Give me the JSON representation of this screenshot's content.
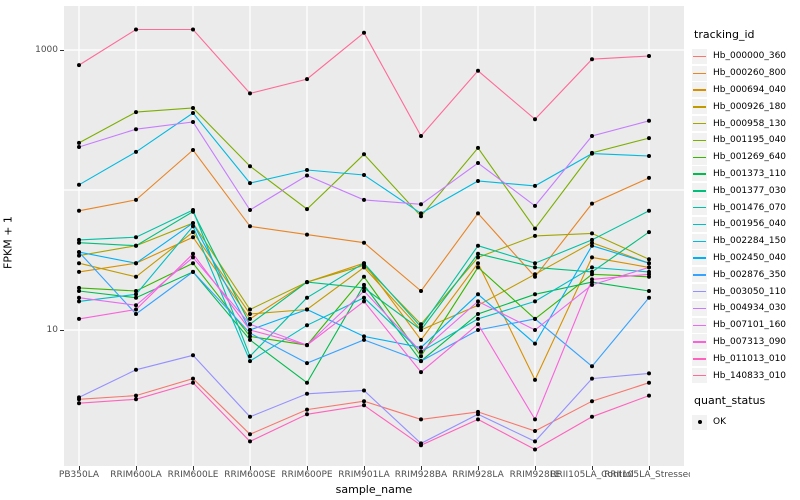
{
  "figure": {
    "background": "#FFFFFF",
    "panel_background": "#EBEBEB",
    "gridline_color": "#FFFFFF",
    "point_color": "#000000",
    "tick_label_color": "#4D4D4D"
  },
  "chart_data": {
    "type": "line",
    "title": "",
    "xlabel": "sample_name",
    "ylabel": "FPKM + 1",
    "yscale": "log10",
    "ylim": [
      1,
      2000
    ],
    "grid": "on",
    "legend_position": "right",
    "yticks": [
      {
        "value": 1000,
        "label": "1000"
      },
      {
        "value": 10,
        "label": "10"
      }
    ],
    "gridlines_y": [
      10,
      100,
      1000
    ],
    "categories": [
      "PB350LA",
      "RRIM600LA",
      "RRIM600LE",
      "RRIM600SE",
      "RRIM600PE",
      "RRIM901LA",
      "RRIM928BA",
      "RRIM928LA",
      "RRIM928LE",
      "RRII105LA_Control",
      "RRII105LA_Stressed"
    ],
    "series": [
      {
        "name": "Hb_000000_360",
        "color": "#F8766D",
        "values": [
          3.2,
          3.4,
          4.5,
          1.8,
          2.7,
          3.1,
          2.3,
          2.6,
          1.9,
          3.1,
          4.2
        ]
      },
      {
        "name": "Hb_000260_800",
        "color": "#E88526",
        "values": [
          71,
          85,
          193,
          55,
          48,
          42,
          19,
          68,
          24,
          80,
          122
        ]
      },
      {
        "name": "Hb_000694_040",
        "color": "#D89000",
        "values": [
          26,
          30,
          46,
          12,
          22,
          30,
          8.5,
          30,
          4.4,
          33,
          28
        ]
      },
      {
        "name": "Hb_000926_180",
        "color": "#C09B00",
        "values": [
          30,
          24,
          50,
          13,
          14,
          28,
          10,
          15,
          25,
          42,
          30
        ]
      },
      {
        "name": "Hb_000958_130",
        "color": "#A3A500",
        "values": [
          34,
          40,
          58,
          14,
          22,
          29,
          11,
          33,
          47,
          49,
          32
        ]
      },
      {
        "name": "Hb_001195_040",
        "color": "#7CAE00",
        "values": [
          217,
          360,
          385,
          148,
          73,
          180,
          65,
          200,
          53,
          184,
          235
        ]
      },
      {
        "name": "Hb_001269_640",
        "color": "#39B600",
        "values": [
          20,
          19,
          30,
          9,
          7.8,
          24,
          6.5,
          28,
          12,
          25,
          24
        ]
      },
      {
        "name": "Hb_001373_110",
        "color": "#00BB4E",
        "values": [
          19,
          17,
          26,
          8.5,
          4.2,
          21,
          6,
          13,
          18,
          22,
          19
        ]
      },
      {
        "name": "Hb_001377_030",
        "color": "#00BF7D",
        "values": [
          42,
          40,
          70,
          11,
          22,
          20,
          10,
          35,
          28,
          26,
          50
        ]
      },
      {
        "name": "Hb_001476_070",
        "color": "#00C1A3",
        "values": [
          44,
          46,
          72,
          6.5,
          17,
          30,
          10.5,
          40,
          30,
          44,
          71
        ]
      },
      {
        "name": "Hb_001956_040",
        "color": "#00BFC4",
        "values": [
          16,
          18,
          55,
          6,
          10.8,
          17,
          7,
          12,
          16,
          28,
          26
        ]
      },
      {
        "name": "Hb_002284_150",
        "color": "#00BAE0",
        "values": [
          109,
          187,
          355,
          112,
          139,
          128,
          68,
          116,
          107,
          182,
          175
        ]
      },
      {
        "name": "Hb_002450_040",
        "color": "#00B0F6",
        "values": [
          36,
          30,
          58,
          10,
          14,
          9,
          7.5,
          18,
          8,
          40,
          30
        ]
      },
      {
        "name": "Hb_002876_350",
        "color": "#35A2FF",
        "values": [
          36,
          13,
          26,
          9.5,
          5.8,
          8.5,
          6,
          10,
          12,
          5.5,
          17
        ]
      },
      {
        "name": "Hb_003050_110",
        "color": "#9590FF",
        "values": [
          3.3,
          5.2,
          6.6,
          2.4,
          3.5,
          3.7,
          1.55,
          2.5,
          1.6,
          4.5,
          4.9
        ]
      },
      {
        "name": "Hb_004934_030",
        "color": "#C77CFF",
        "values": [
          203,
          272,
          306,
          72,
          127,
          85,
          79,
          156,
          77,
          243,
          312
        ]
      },
      {
        "name": "Hb_007101_160",
        "color": "#E76BF3",
        "values": [
          17,
          15,
          33,
          11,
          7.8,
          19,
          7,
          16,
          10,
          21,
          28
        ]
      },
      {
        "name": "Hb_007313_090",
        "color": "#FA62DB",
        "values": [
          12,
          14,
          35,
          10,
          7.8,
          16,
          5,
          11,
          2.3,
          23,
          25
        ]
      },
      {
        "name": "Hb_011013_010",
        "color": "#FF62BC",
        "values": [
          3.0,
          3.2,
          4.2,
          1.6,
          2.5,
          2.9,
          1.5,
          2.3,
          1.4,
          2.4,
          3.4
        ]
      },
      {
        "name": "Hb_140833_010",
        "color": "#FF6A98",
        "values": [
          780,
          1400,
          1400,
          490,
          620,
          1330,
          243,
          710,
          320,
          860,
          906
        ]
      }
    ],
    "legend": {
      "tracking_title": "tracking_id",
      "quant_title": "quant_status",
      "quant_value": "OK",
      "quant_marker": "point"
    }
  }
}
